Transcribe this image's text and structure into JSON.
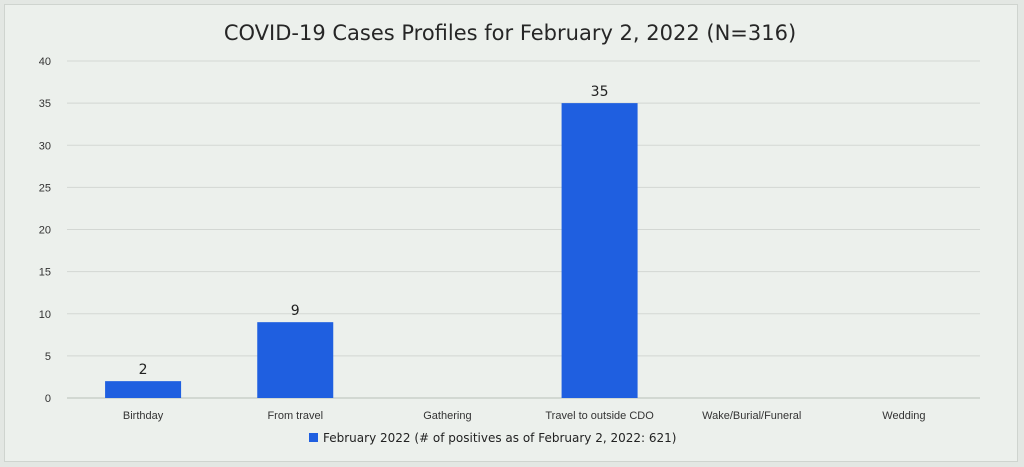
{
  "chart_data": {
    "type": "bar",
    "title": "COVID-19 Cases Profiles for February 2, 2022 (N=316)",
    "categories": [
      "Birthday",
      "From travel",
      "Gathering",
      "Travel to outside CDO",
      "Wake/Burial/Funeral",
      "Wedding"
    ],
    "series": [
      {
        "name": "February 2022 (# of positives as of February 2, 2022: 621)",
        "values": [
          2,
          9,
          0,
          35,
          0,
          0
        ]
      }
    ],
    "data_labels": [
      "2",
      "9",
      "",
      "35",
      "",
      ""
    ],
    "ylim": [
      0,
      40
    ],
    "yticks": [
      0,
      5,
      10,
      15,
      20,
      25,
      30,
      35,
      40
    ],
    "xlabel": "",
    "ylabel": "",
    "grid": true,
    "legend_position": "bottom",
    "colors": {
      "bar": "#1f5fe0",
      "grid": "#d3d7d3",
      "axis": "#b9bfb9"
    }
  }
}
